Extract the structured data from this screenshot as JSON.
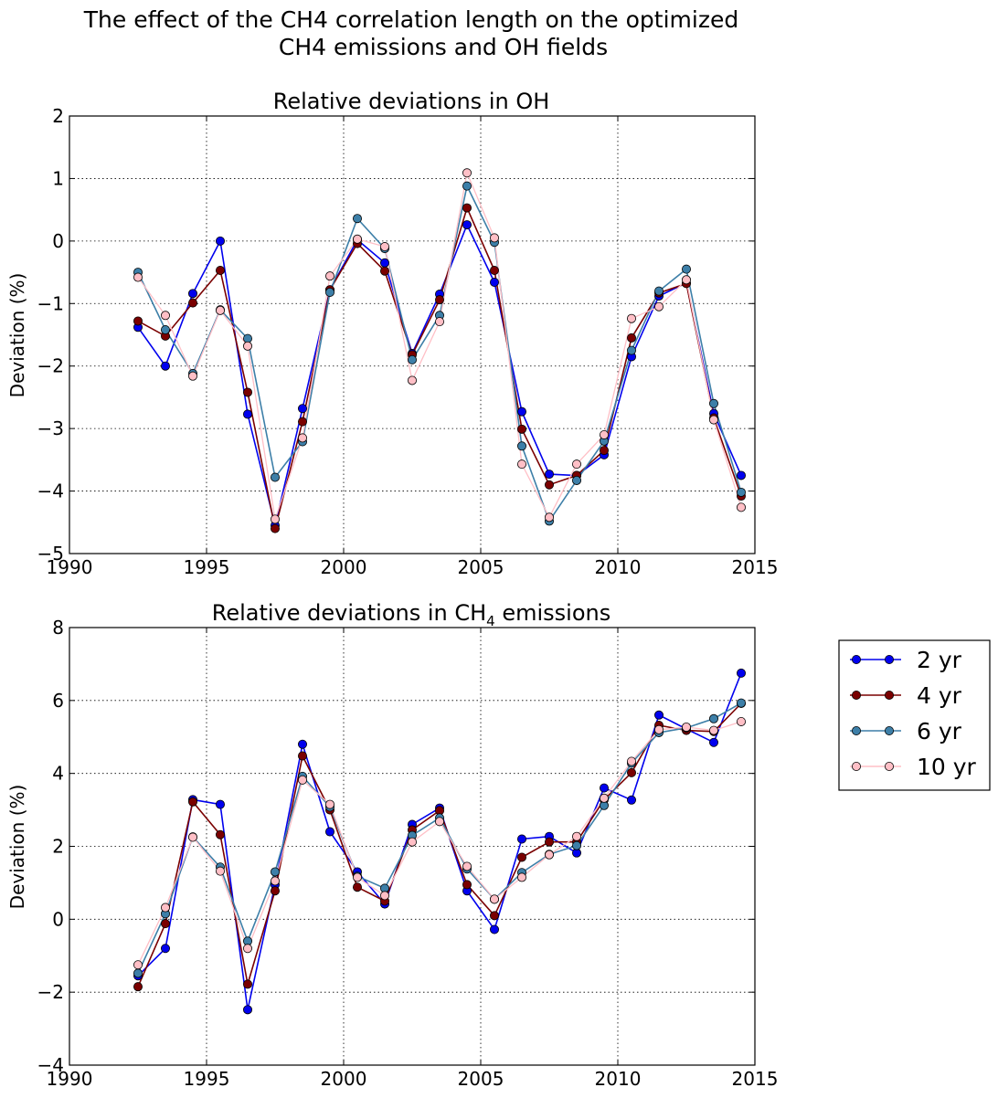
{
  "figure": {
    "title_line1": "The effect of the CH4 correlation length on the optimized",
    "title_line2": "CH4 emissions and OH fields"
  },
  "legend": {
    "position": "right of lower panel",
    "entries": [
      "2 yr",
      "4 yr",
      "6 yr",
      "10 yr"
    ]
  },
  "colors": {
    "2 yr": "#0000ee",
    "4 yr": "#7a0000",
    "6 yr": "#3d7fa8",
    "10 yr": "#ffbfc6"
  },
  "chart_data": [
    {
      "type": "line",
      "title": "Relative deviations in OH",
      "xlabel": "",
      "ylabel": "Deviation (%)",
      "xlim": [
        1990,
        2015
      ],
      "ylim": [
        -5,
        2
      ],
      "xticks": [
        1990,
        1995,
        2000,
        2005,
        2010,
        2015
      ],
      "yticks": [
        -5,
        -4,
        -3,
        -2,
        -1,
        0,
        1,
        2
      ],
      "grid": true,
      "x": [
        1992.5,
        1993.5,
        1994.5,
        1995.5,
        1996.5,
        1997.5,
        1998.5,
        1999.5,
        2000.5,
        2001.5,
        2002.5,
        2003.5,
        2004.5,
        2005.5,
        2006.5,
        2007.5,
        2008.5,
        2009.5,
        2010.5,
        2011.5,
        2012.5,
        2013.5,
        2014.5
      ],
      "series": [
        {
          "name": "2 yr",
          "values": [
            -1.38,
            -2.0,
            -0.84,
            0.0,
            -2.77,
            -4.55,
            -2.68,
            -0.78,
            0.02,
            -0.35,
            -1.8,
            -0.85,
            0.26,
            -0.66,
            -2.73,
            -3.73,
            -3.75,
            -3.42,
            -1.85,
            -0.88,
            -0.67,
            -2.76,
            -3.75
          ]
        },
        {
          "name": "4 yr",
          "values": [
            -1.28,
            -1.52,
            -0.99,
            -0.47,
            -2.42,
            -4.6,
            -2.89,
            -0.78,
            -0.04,
            -0.48,
            -1.82,
            -0.94,
            0.53,
            -0.47,
            -3.01,
            -3.9,
            -3.75,
            -3.35,
            -1.55,
            -0.83,
            -0.68,
            -2.83,
            -4.08
          ]
        },
        {
          "name": "6 yr",
          "values": [
            -0.5,
            -1.42,
            -2.12,
            -1.1,
            -1.56,
            -3.78,
            -3.21,
            -0.82,
            0.36,
            -0.12,
            -1.9,
            -1.19,
            0.88,
            -0.02,
            -3.28,
            -4.48,
            -3.83,
            -3.2,
            -1.75,
            -0.8,
            -0.45,
            -2.6,
            -4.02
          ]
        },
        {
          "name": "10 yr",
          "values": [
            -0.58,
            -1.19,
            -2.16,
            -1.11,
            -1.68,
            -4.45,
            -3.15,
            -0.56,
            0.03,
            -0.09,
            -2.23,
            -1.29,
            1.09,
            0.05,
            -3.57,
            -4.42,
            -3.57,
            -3.1,
            -1.24,
            -1.05,
            -0.62,
            -2.86,
            -4.26
          ]
        }
      ]
    },
    {
      "type": "line",
      "title": "Relative deviations in CH",
      "title_subscript": "4",
      "title_suffix": " emissions",
      "xlabel": "",
      "ylabel": "Deviation (%)",
      "xlim": [
        1990,
        2015
      ],
      "ylim": [
        -4,
        8
      ],
      "xticks": [
        1990,
        1995,
        2000,
        2005,
        2010,
        2015
      ],
      "yticks": [
        -4,
        -2,
        0,
        2,
        4,
        6,
        8
      ],
      "grid": true,
      "x": [
        1992.5,
        1993.5,
        1994.5,
        1995.5,
        1996.5,
        1997.5,
        1998.5,
        1999.5,
        2000.5,
        2001.5,
        2002.5,
        2003.5,
        2004.5,
        2005.5,
        2006.5,
        2007.5,
        2008.5,
        2009.5,
        2010.5,
        2011.5,
        2012.5,
        2013.5,
        2014.5
      ],
      "series": [
        {
          "name": "2 yr",
          "values": [
            -1.55,
            -0.8,
            3.28,
            3.15,
            -2.48,
            0.95,
            4.8,
            2.4,
            1.3,
            0.42,
            2.6,
            3.05,
            0.78,
            -0.28,
            2.2,
            2.27,
            1.82,
            3.6,
            3.27,
            5.6,
            5.22,
            4.85,
            6.75
          ]
        },
        {
          "name": "4 yr",
          "values": [
            -1.85,
            -0.12,
            3.22,
            2.32,
            -1.78,
            0.78,
            4.48,
            3.0,
            0.88,
            0.5,
            2.45,
            2.98,
            0.95,
            0.1,
            1.7,
            2.12,
            2.12,
            3.28,
            4.02,
            5.32,
            5.18,
            5.15,
            5.92
          ]
        },
        {
          "name": "6 yr",
          "values": [
            -1.48,
            0.15,
            2.26,
            1.43,
            -0.6,
            1.3,
            3.92,
            3.08,
            1.18,
            0.85,
            2.3,
            2.78,
            1.38,
            0.55,
            1.28,
            1.78,
            2.02,
            3.12,
            4.28,
            5.12,
            5.25,
            5.5,
            5.93
          ]
        },
        {
          "name": "10 yr",
          "values": [
            -1.25,
            0.32,
            2.25,
            1.32,
            -0.8,
            1.05,
            3.82,
            3.15,
            1.15,
            0.65,
            2.12,
            2.68,
            1.45,
            0.55,
            1.15,
            1.77,
            2.27,
            3.32,
            4.33,
            5.2,
            5.27,
            5.18,
            5.42
          ]
        }
      ]
    }
  ]
}
